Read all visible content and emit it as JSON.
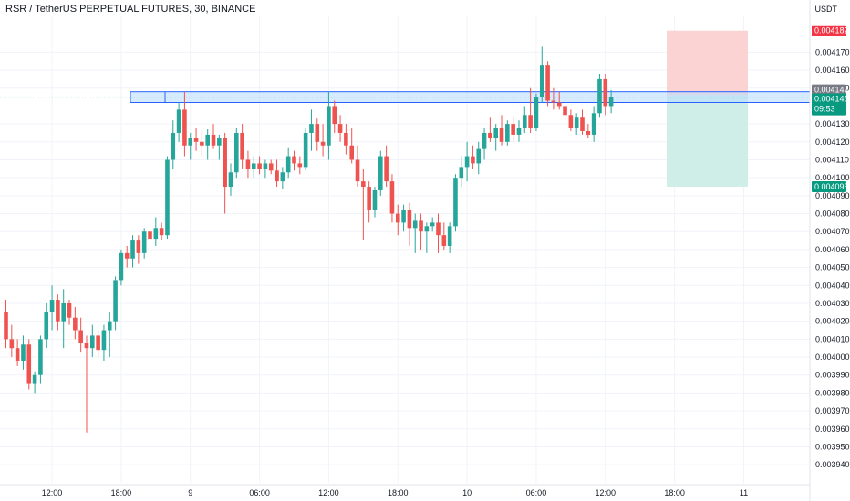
{
  "header": {
    "title": "RSR / TetherUS PERPETUAL FUTURES, 30, BINANCE",
    "unit": "USDT"
  },
  "price_tags": {
    "target_top": "0.004182",
    "zone_top": "0.004147",
    "current": "0.004145",
    "countdown": "09:53",
    "target_bottom": "0.004095"
  },
  "colors": {
    "up": "#26a69a",
    "down": "#ef5350",
    "zone_border": "#2962ff",
    "zone_fill": "#bbdefb",
    "risk_fill": "#fbd3d3",
    "reward_fill": "#cfeee8",
    "tag_red": "#f23645",
    "tag_green": "#089981",
    "tag_gray": "#787b86"
  },
  "chart_data": {
    "type": "candlestick",
    "title": "RSR / TetherUS PERPETUAL FUTURES, 30, BINANCE",
    "ylabel": "USDT",
    "ylim": [
      0.003935,
      0.00419
    ],
    "y_ticks": [
      "0.004170",
      "0.004160",
      "0.004150",
      "0.004130",
      "0.004120",
      "0.004110",
      "0.004100",
      "0.004090",
      "0.004080",
      "0.004070",
      "0.004060",
      "0.004050",
      "0.004040",
      "0.004030",
      "0.004020",
      "0.004010",
      "0.004000",
      "0.003990",
      "0.003980",
      "0.003970",
      "0.003960",
      "0.003950",
      "0.003940"
    ],
    "x_ticks": [
      "12:00",
      "18:00",
      "9",
      "06:00",
      "12:00",
      "18:00",
      "10",
      "06:00",
      "12:00",
      "18:00",
      "11"
    ],
    "x_tick_index": [
      8,
      20,
      32,
      44,
      56,
      68,
      80,
      92,
      104,
      116,
      128
    ],
    "grid": true,
    "current_price": 0.004145,
    "resistance_zone": [
      0.004142,
      0.004148
    ],
    "position": {
      "entry": 0.004146,
      "stop": 0.004182,
      "target": 0.004095
    },
    "candles": [
      [
        0.004025,
        0.004032,
        0.004005,
        0.00401
      ],
      [
        0.00401,
        0.004018,
        0.004,
        0.004005
      ],
      [
        0.004005,
        0.00401,
        0.003995,
        0.003998
      ],
      [
        0.003998,
        0.004012,
        0.003993,
        0.004007
      ],
      [
        0.004007,
        0.00401,
        0.003982,
        0.003985
      ],
      [
        0.003985,
        0.003992,
        0.00398,
        0.00399
      ],
      [
        0.00399,
        0.004012,
        0.003985,
        0.00401
      ],
      [
        0.00401,
        0.00403,
        0.004005,
        0.004025
      ],
      [
        0.004025,
        0.00404,
        0.004015,
        0.004032
      ],
      [
        0.004032,
        0.004035,
        0.004015,
        0.00402
      ],
      [
        0.00402,
        0.004038,
        0.004005,
        0.00403
      ],
      [
        0.00403,
        0.004032,
        0.004018,
        0.004022
      ],
      [
        0.004022,
        0.004028,
        0.00401,
        0.004015
      ],
      [
        0.004015,
        0.004022,
        0.004003,
        0.004008
      ],
      [
        0.004008,
        0.004012,
        0.003958,
        0.004005
      ],
      [
        0.004005,
        0.004018,
        0.004,
        0.004012
      ],
      [
        0.004012,
        0.004015,
        0.004,
        0.004004
      ],
      [
        0.004004,
        0.004018,
        0.003998,
        0.004015
      ],
      [
        0.004015,
        0.004025,
        0.004,
        0.00402
      ],
      [
        0.00402,
        0.004045,
        0.004015,
        0.004043
      ],
      [
        0.004043,
        0.00406,
        0.00404,
        0.004058
      ],
      [
        0.004058,
        0.004062,
        0.00405,
        0.004055
      ],
      [
        0.004055,
        0.004068,
        0.00405,
        0.004065
      ],
      [
        0.004065,
        0.004068,
        0.004052,
        0.004058
      ],
      [
        0.004058,
        0.004072,
        0.004055,
        0.00407
      ],
      [
        0.00407,
        0.004075,
        0.00406,
        0.004066
      ],
      [
        0.004066,
        0.004078,
        0.004062,
        0.004072
      ],
      [
        0.004072,
        0.004075,
        0.004065,
        0.004068
      ],
      [
        0.004068,
        0.004112,
        0.004066,
        0.00411
      ],
      [
        0.00411,
        0.004132,
        0.004105,
        0.004125
      ],
      [
        0.004125,
        0.004142,
        0.00412,
        0.004138
      ],
      [
        0.004138,
        0.004148,
        0.004112,
        0.004118
      ],
      [
        0.004118,
        0.004125,
        0.00411,
        0.004122
      ],
      [
        0.004122,
        0.004128,
        0.004115,
        0.00412
      ],
      [
        0.00412,
        0.004126,
        0.004112,
        0.004118
      ],
      [
        0.004118,
        0.004127,
        0.00411,
        0.004124
      ],
      [
        0.004124,
        0.00413,
        0.004116,
        0.004118
      ],
      [
        0.004118,
        0.004124,
        0.00411,
        0.004122
      ],
      [
        0.004122,
        0.004125,
        0.00408,
        0.004095
      ],
      [
        0.004095,
        0.004108,
        0.00409,
        0.004103
      ],
      [
        0.004103,
        0.004128,
        0.0041,
        0.004125
      ],
      [
        0.004125,
        0.00413,
        0.004105,
        0.00411
      ],
      [
        0.00411,
        0.004115,
        0.0041,
        0.004105
      ],
      [
        0.004105,
        0.004112,
        0.0041,
        0.004108
      ],
      [
        0.004108,
        0.004112,
        0.004102,
        0.004105
      ],
      [
        0.004105,
        0.00411,
        0.0041,
        0.004108
      ],
      [
        0.004108,
        0.00411,
        0.004102,
        0.004104
      ],
      [
        0.004104,
        0.00411,
        0.004095,
        0.004098
      ],
      [
        0.004098,
        0.004106,
        0.004094,
        0.004103
      ],
      [
        0.004103,
        0.004117,
        0.0041,
        0.004112
      ],
      [
        0.004112,
        0.004115,
        0.004104,
        0.004108
      ],
      [
        0.004108,
        0.004112,
        0.004102,
        0.004106
      ],
      [
        0.004106,
        0.004128,
        0.004104,
        0.004125
      ],
      [
        0.004125,
        0.004138,
        0.004115,
        0.00413
      ],
      [
        0.00413,
        0.004133,
        0.004115,
        0.00412
      ],
      [
        0.00412,
        0.00413,
        0.004112,
        0.004118
      ],
      [
        0.004118,
        0.004148,
        0.00411,
        0.00414
      ],
      [
        0.00414,
        0.004143,
        0.004125,
        0.00413
      ],
      [
        0.00413,
        0.004135,
        0.00412,
        0.004125
      ],
      [
        0.004125,
        0.00413,
        0.004113,
        0.004118
      ],
      [
        0.004118,
        0.004128,
        0.004108,
        0.00411
      ],
      [
        0.00411,
        0.004118,
        0.004095,
        0.004098
      ],
      [
        0.004098,
        0.004105,
        0.004065,
        0.004095
      ],
      [
        0.004095,
        0.004098,
        0.004075,
        0.004082
      ],
      [
        0.004082,
        0.004095,
        0.004078,
        0.004093
      ],
      [
        0.004093,
        0.004115,
        0.00409,
        0.004112
      ],
      [
        0.004112,
        0.004118,
        0.004095,
        0.004098
      ],
      [
        0.004098,
        0.004102,
        0.004075,
        0.00408
      ],
      [
        0.00408,
        0.004085,
        0.004068,
        0.004075
      ],
      [
        0.004075,
        0.004085,
        0.00407,
        0.004082
      ],
      [
        0.004082,
        0.004086,
        0.004062,
        0.004072
      ],
      [
        0.004072,
        0.00408,
        0.004058,
        0.004076
      ],
      [
        0.004076,
        0.00408,
        0.00406,
        0.00407
      ],
      [
        0.00407,
        0.004075,
        0.004058,
        0.004073
      ],
      [
        0.004073,
        0.004078,
        0.00407,
        0.004075
      ],
      [
        0.004075,
        0.00408,
        0.004058,
        0.004068
      ],
      [
        0.004068,
        0.004075,
        0.00406,
        0.004062
      ],
      [
        0.004062,
        0.004075,
        0.004058,
        0.004073
      ],
      [
        0.004073,
        0.004102,
        0.00407,
        0.0041
      ],
      [
        0.0041,
        0.004112,
        0.004095,
        0.004106
      ],
      [
        0.004106,
        0.00412,
        0.004098,
        0.004112
      ],
      [
        0.004112,
        0.004118,
        0.004105,
        0.004108
      ],
      [
        0.004108,
        0.00412,
        0.004102,
        0.004116
      ],
      [
        0.004116,
        0.004128,
        0.00411,
        0.004125
      ],
      [
        0.004125,
        0.004134,
        0.00412,
        0.004122
      ],
      [
        0.004122,
        0.00413,
        0.004115,
        0.004128
      ],
      [
        0.004128,
        0.004135,
        0.004118,
        0.00412
      ],
      [
        0.00412,
        0.004132,
        0.004118,
        0.00413
      ],
      [
        0.00413,
        0.004134,
        0.00412,
        0.004124
      ],
      [
        0.004124,
        0.004132,
        0.00412,
        0.004128
      ],
      [
        0.004128,
        0.00414,
        0.004125,
        0.004135
      ],
      [
        0.004135,
        0.00415,
        0.004125,
        0.004128
      ],
      [
        0.004128,
        0.004147,
        0.004126,
        0.004145
      ],
      [
        0.004145,
        0.004173,
        0.004142,
        0.004163
      ],
      [
        0.004163,
        0.004165,
        0.00414,
        0.004143
      ],
      [
        0.004143,
        0.00415,
        0.004138,
        0.004142
      ],
      [
        0.004142,
        0.004148,
        0.004138,
        0.00414
      ],
      [
        0.00414,
        0.004142,
        0.004132,
        0.004135
      ],
      [
        0.004135,
        0.004138,
        0.004126,
        0.004128
      ],
      [
        0.004128,
        0.004136,
        0.004124,
        0.004134
      ],
      [
        0.004134,
        0.004138,
        0.004124,
        0.004126
      ],
      [
        0.004126,
        0.00413,
        0.004122,
        0.004124
      ],
      [
        0.004124,
        0.00414,
        0.00412,
        0.004136
      ],
      [
        0.004136,
        0.004158,
        0.004134,
        0.004155
      ],
      [
        0.004155,
        0.004158,
        0.004135,
        0.00414
      ],
      [
        0.00414,
        0.004149,
        0.004136,
        0.004145
      ]
    ]
  }
}
